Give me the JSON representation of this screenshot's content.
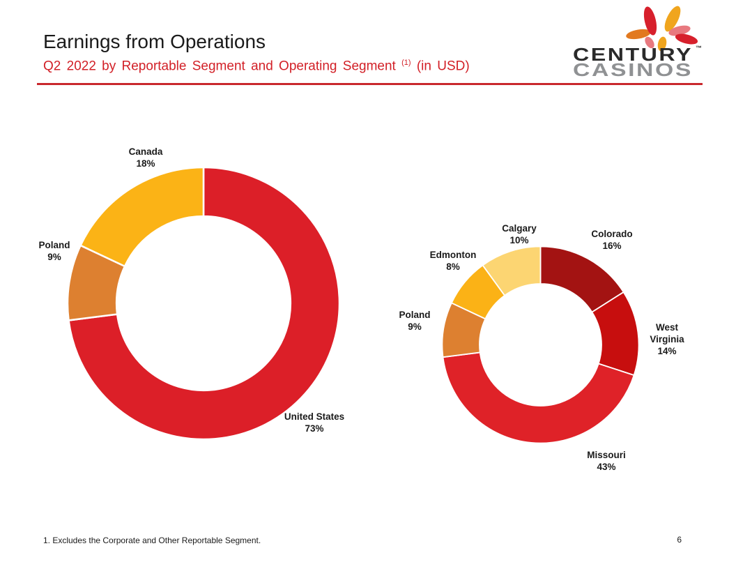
{
  "slide": {
    "title": "Earnings from Operations",
    "subtitle_main": "Q2 2022 by Reportable Segment and Operating Segment",
    "subtitle_sup": "(1)",
    "subtitle_tail": "(in USD)",
    "footnote": "1. Excludes the Corporate and Other Reportable Segment.",
    "page_number": "6",
    "accent_red": "#c9282d",
    "subtitle_color": "#d22027"
  },
  "logo": {
    "line1": "CENTURY",
    "tm": "™",
    "line2": "CASINOS",
    "colors": {
      "red": "#d7202c",
      "orange": "#e2791f",
      "yellow": "#f0a51e",
      "salmon": "#e8797f",
      "wordmark_dark": "#2a2a2a",
      "wordmark_gray": "#8f9193"
    }
  },
  "chart_data": [
    {
      "type": "pie",
      "subtype": "donut",
      "title": "Earnings from Operations by Reportable Segment",
      "unit": "percent",
      "start_angle_deg": 0,
      "clockwise": true,
      "inner_radius_ratio": 0.64,
      "legend": "none",
      "labels_position": "outside",
      "slices": [
        {
          "label": "United States",
          "value": 73,
          "value_label": "73%",
          "color": "#dc1f28"
        },
        {
          "label": "Poland",
          "value": 9,
          "value_label": "9%",
          "color": "#dd8030"
        },
        {
          "label": "Canada",
          "value": 18,
          "value_label": "18%",
          "color": "#fbb316"
        }
      ]
    },
    {
      "type": "pie",
      "subtype": "donut",
      "title": "Earnings from Operations by Operating Segment",
      "unit": "percent",
      "start_angle_deg": 0,
      "clockwise": true,
      "inner_radius_ratio": 0.62,
      "legend": "none",
      "labels_position": "outside",
      "slices": [
        {
          "label": "Colorado",
          "value": 16,
          "value_label": "16%",
          "color": "#a31312"
        },
        {
          "label": "West Virginia",
          "value": 14,
          "value_label": "14%",
          "color": "#c70e0e"
        },
        {
          "label": "Missouri",
          "value": 43,
          "value_label": "43%",
          "color": "#df2228"
        },
        {
          "label": "Poland",
          "value": 9,
          "value_label": "9%",
          "color": "#dd8030"
        },
        {
          "label": "Edmonton",
          "value": 8,
          "value_label": "8%",
          "color": "#fbb216"
        },
        {
          "label": "Calgary",
          "value": 10,
          "value_label": "10%",
          "color": "#fcd572"
        }
      ]
    }
  ]
}
